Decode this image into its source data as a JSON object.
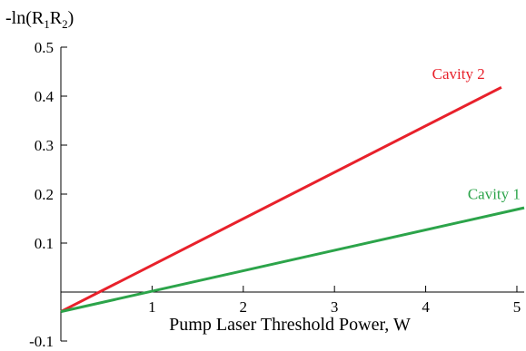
{
  "chart_data": {
    "type": "line",
    "title": "",
    "xlabel": "Pump Laser Threshold Power, W",
    "ylabel": "-ln(R1R2)",
    "ylabel_parts": {
      "prefix": "-ln(R",
      "sub1": "1",
      "mid": "R",
      "sub2": "2",
      "suffix": ")"
    },
    "xlim": [
      0,
      5.08
    ],
    "ylim": [
      -0.1,
      0.5
    ],
    "x_ticks": [
      1,
      2,
      3,
      4,
      5
    ],
    "x_tick_labels": [
      "1",
      "2",
      "3",
      "4",
      "5"
    ],
    "y_ticks": [
      -0.1,
      0.1,
      0.2,
      0.3,
      0.4,
      0.5
    ],
    "y_tick_labels": [
      "-0.1",
      "0.1",
      "0.2",
      "0.3",
      "0.4",
      "0.5"
    ],
    "grid": false,
    "legend": "none",
    "series": [
      {
        "name": "Cavity 2",
        "color": "#e8212b",
        "x": [
          0,
          4.83
        ],
        "y": [
          -0.04,
          0.418
        ],
        "label_at": {
          "x": 4.36,
          "y": 0.435
        }
      },
      {
        "name": "Cavity 1",
        "color": "#2ca44a",
        "x": [
          0,
          5.08
        ],
        "y": [
          -0.04,
          0.172
        ],
        "label_at": {
          "x": 4.75,
          "y": 0.19
        }
      }
    ]
  }
}
